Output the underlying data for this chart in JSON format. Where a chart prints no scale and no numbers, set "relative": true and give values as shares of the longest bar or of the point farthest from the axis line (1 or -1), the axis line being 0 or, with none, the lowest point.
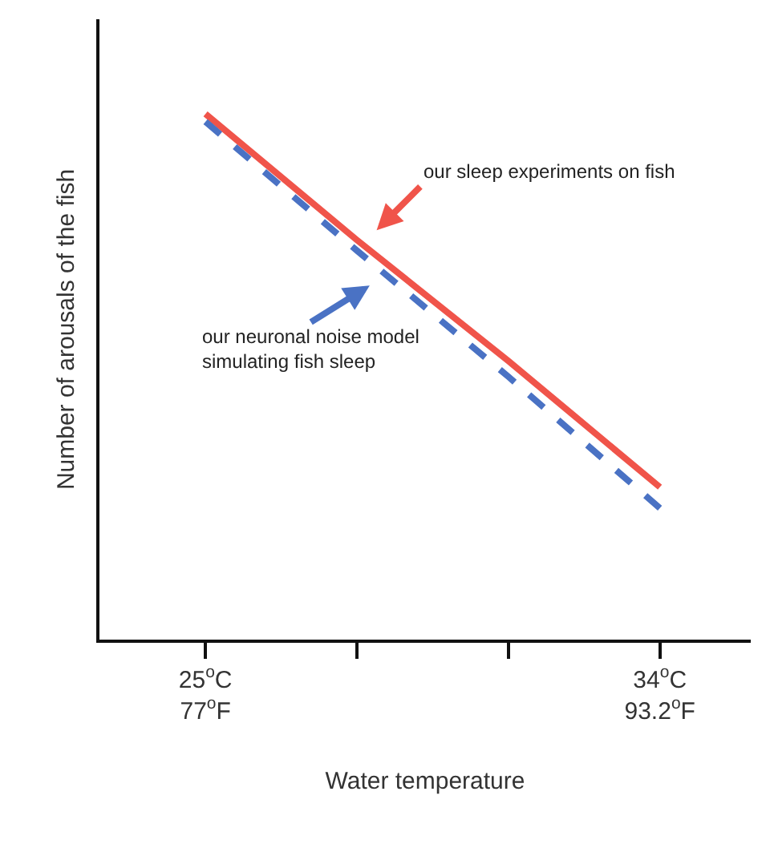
{
  "chart_data": {
    "type": "line",
    "relative": true,
    "xlabel": "Water temperature",
    "ylabel": "Number of arousals of the fish",
    "categories": [
      "25$^{o}$C\n77$^{o}$F",
      null,
      null,
      "34$^{o}$C\n93.2$^{o}$F"
    ],
    "series": [
      {
        "color": "#f0544a",
        "values": [
          1,
          0.76,
          0.53,
          0.29
        ],
        "line_style": "solid"
      },
      {
        "color": "#4a72c4",
        "values": [
          0.985,
          0.74,
          0.5,
          0.25
        ],
        "line_style": "dashed"
      }
    ],
    "annotations": [
      "our sleep experiments on fish",
      "our neuronal noise model\nsimulating fish sleep"
    ],
    "marker": "none",
    "grid": false
  }
}
